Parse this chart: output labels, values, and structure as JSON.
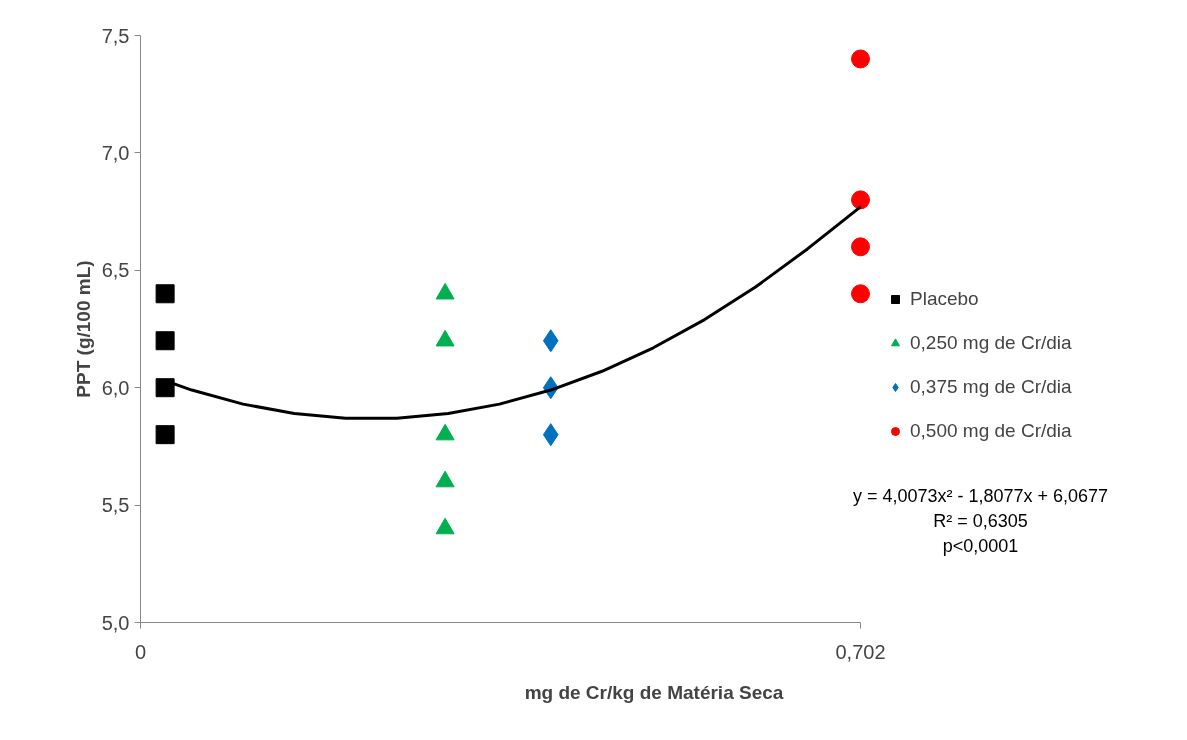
{
  "chart_data": {
    "type": "scatter",
    "xlabel": "mg de Cr/kg de Matéria Seca",
    "ylabel": "PPT (g/100 mL)",
    "xlim": [
      0,
      0.702
    ],
    "xticks": [
      {
        "value": 0,
        "label": "0"
      },
      {
        "value": 0.702,
        "label": "0,702"
      }
    ],
    "ylim": [
      5.0,
      7.5
    ],
    "yticks": [
      {
        "value": 5.0,
        "label": "5,0"
      },
      {
        "value": 5.5,
        "label": "5,5"
      },
      {
        "value": 6.0,
        "label": "6,0"
      },
      {
        "value": 6.5,
        "label": "6,5"
      },
      {
        "value": 7.0,
        "label": "7,0"
      },
      {
        "value": 7.5,
        "label": "7,5"
      }
    ],
    "grid": false,
    "legend": "right",
    "series": [
      {
        "name": "Placebo",
        "color": "#000000",
        "marker": "square",
        "x": [
          0.024,
          0.024,
          0.024,
          0.024
        ],
        "values": [
          6.4,
          6.2,
          6.0,
          5.8
        ]
      },
      {
        "name": "0,250 mg de Cr/dia",
        "color": "#00b050",
        "marker": "triangle",
        "x": [
          0.297,
          0.297,
          0.297,
          0.297,
          0.297
        ],
        "values": [
          6.4,
          6.2,
          5.8,
          5.6,
          5.4
        ]
      },
      {
        "name": "0,375 mg de Cr/dia",
        "color": "#0070c0",
        "marker": "diamond",
        "x": [
          0.4,
          0.4,
          0.4
        ],
        "values": [
          6.2,
          6.0,
          5.8
        ]
      },
      {
        "name": "0,500 mg de Cr/dia",
        "color": "#ff0000",
        "marker": "circle",
        "x": [
          0.702,
          0.702,
          0.702,
          0.702
        ],
        "values": [
          7.4,
          6.8,
          6.6,
          6.4
        ]
      },
      {
        "type": "line",
        "color": "#000000",
        "x": [
          0.024,
          0.05,
          0.1,
          0.15,
          0.2,
          0.25,
          0.3,
          0.35,
          0.4,
          0.45,
          0.5,
          0.55,
          0.6,
          0.65,
          0.702
        ],
        "values": [
          6.03,
          5.99,
          5.93,
          5.89,
          5.87,
          5.87,
          5.89,
          5.93,
          5.99,
          6.07,
          6.17,
          6.29,
          6.43,
          6.59,
          6.77
        ]
      }
    ],
    "annotations": [
      "y = 4,0073x² - 1,8077x + 6,0677",
      "R² = 0,6305",
      "p<0,0001"
    ]
  }
}
